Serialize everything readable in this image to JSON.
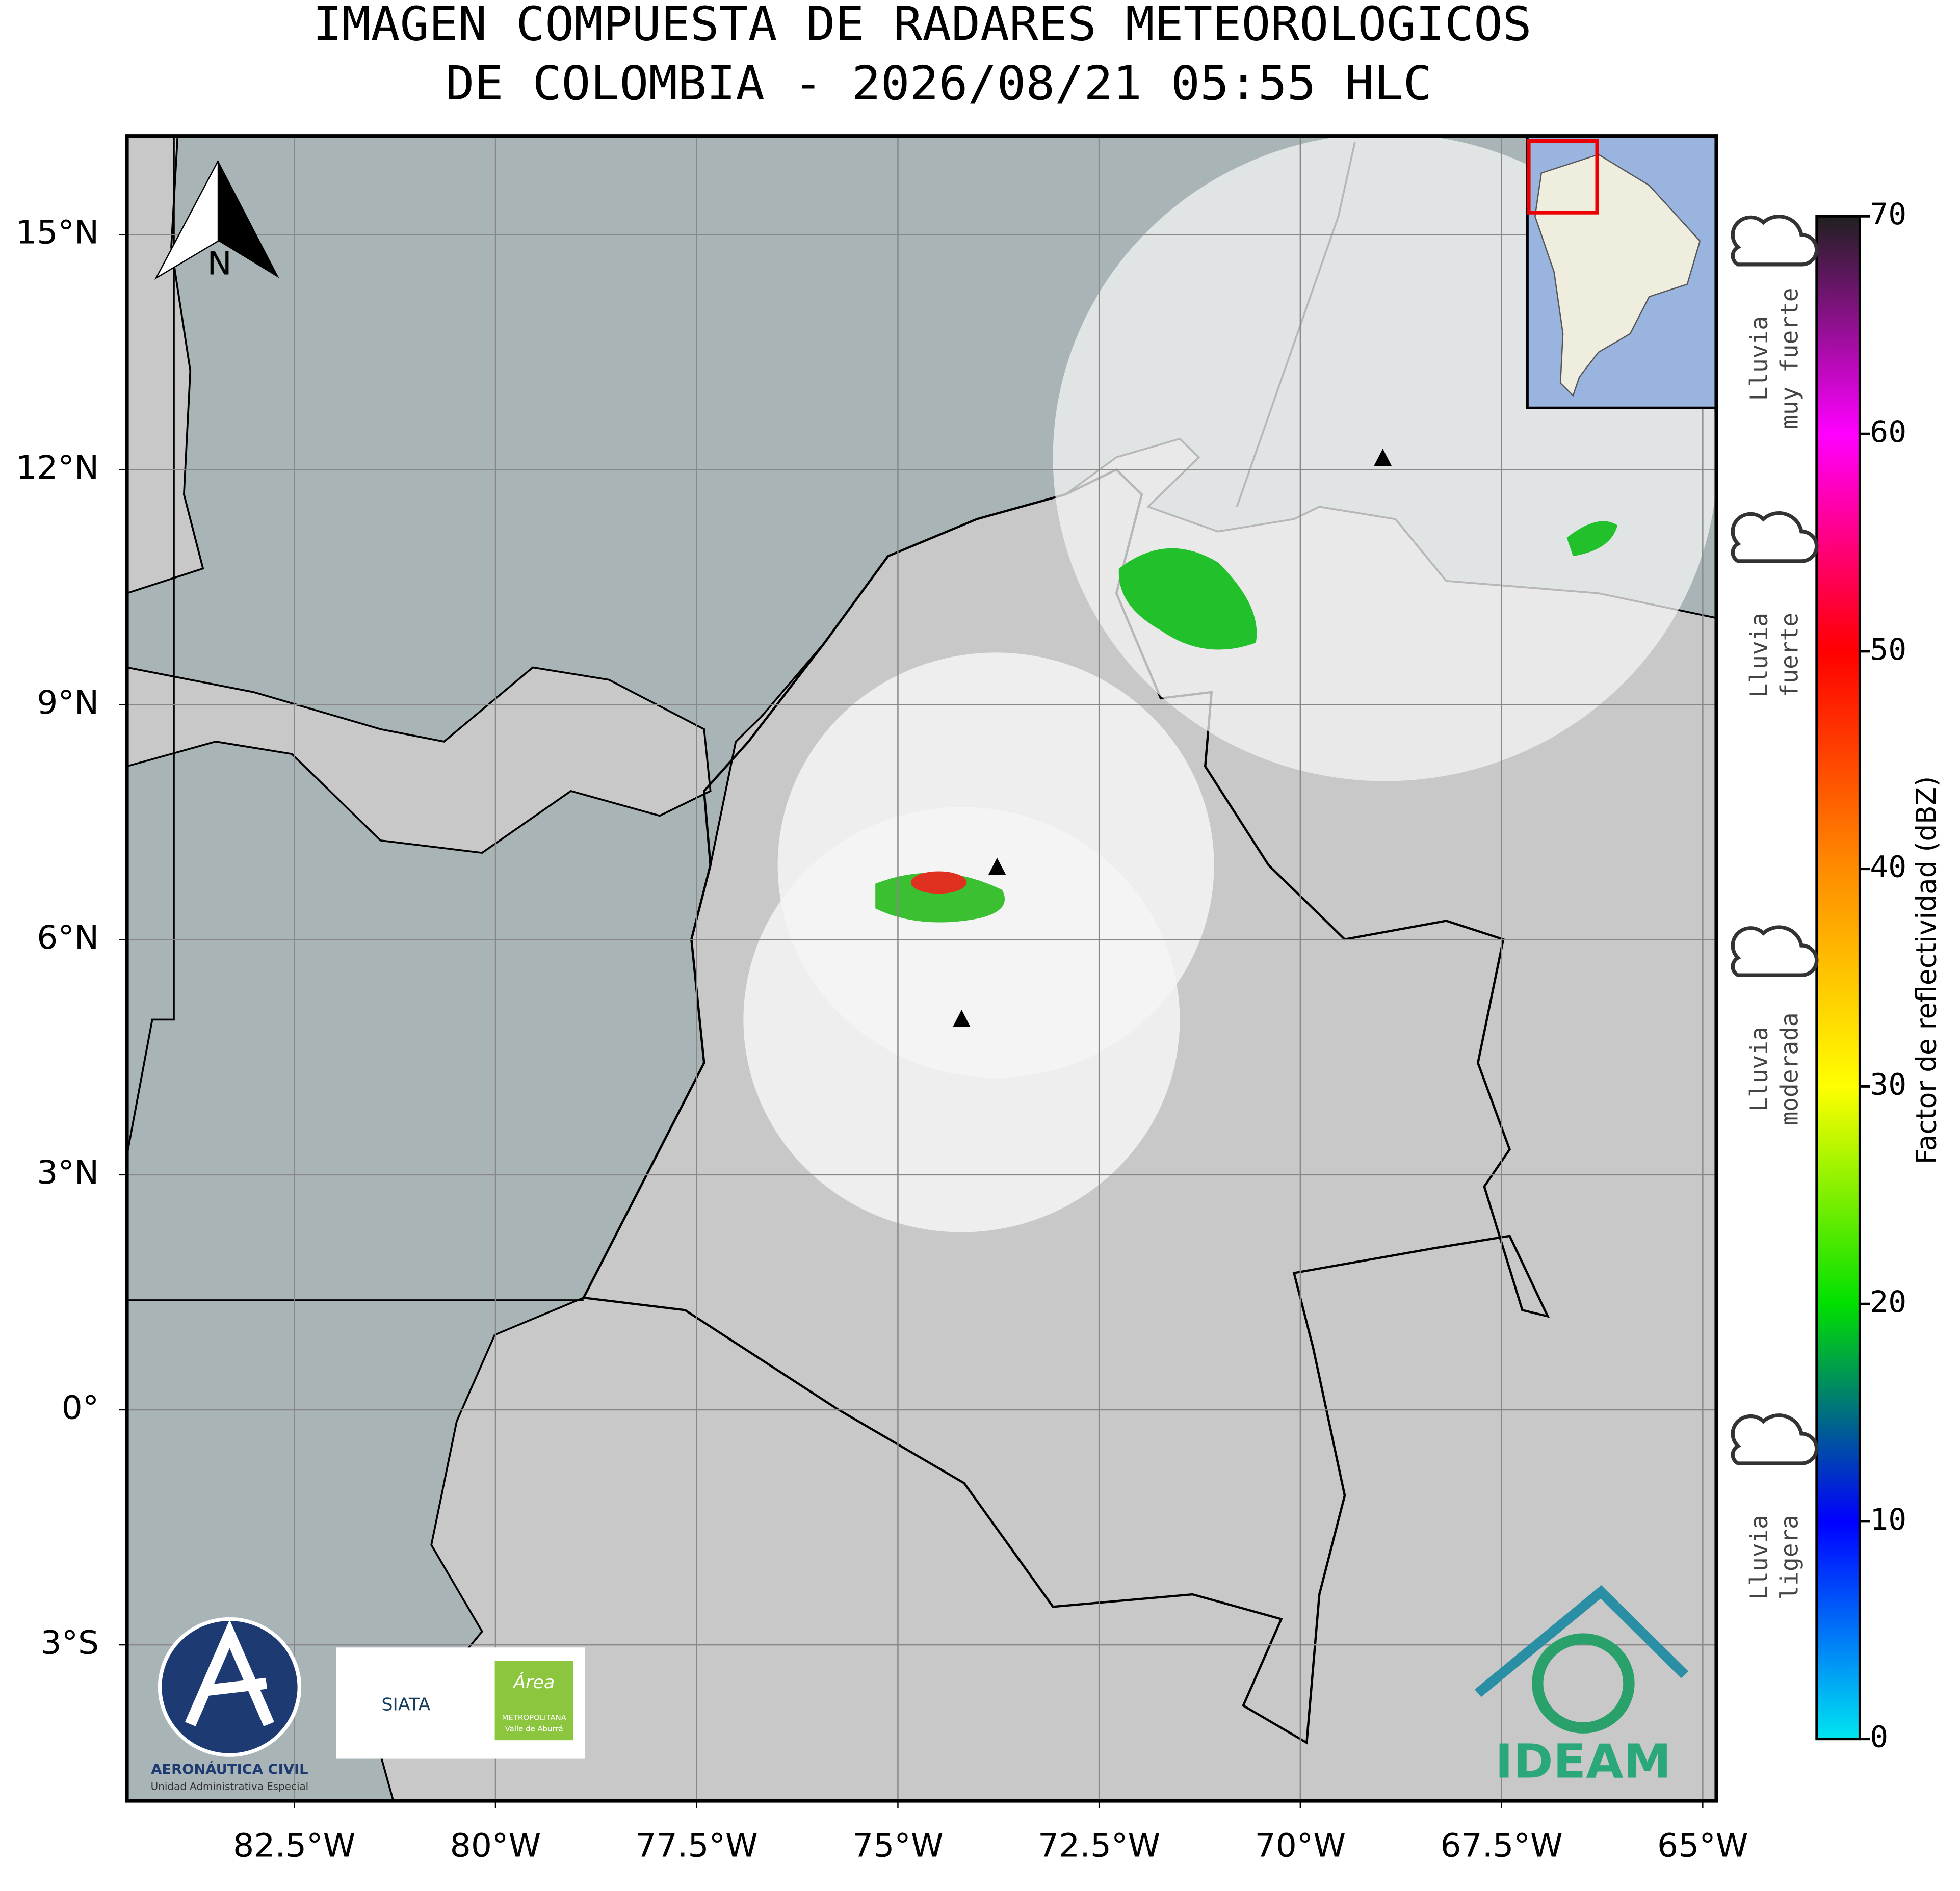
{
  "chart_data": {
    "type": "map",
    "title": [
      "IMAGEN COMPUESTA DE RADARES METEOROLOGICOS",
      "DE COLOMBIA - 2026/08/21 05:55 HLC"
    ],
    "xlim": [
      -84.58,
      -64.83
    ],
    "ylim": [
      -4.99,
      16.26
    ],
    "xticks": [
      {
        "value": -82.5,
        "label": "82.5°W"
      },
      {
        "value": -80,
        "label": "80°W"
      },
      {
        "value": -77.5,
        "label": "77.5°W"
      },
      {
        "value": -75,
        "label": "75°W"
      },
      {
        "value": -72.5,
        "label": "72.5°W"
      },
      {
        "value": -70,
        "label": "70°W"
      },
      {
        "value": -67.5,
        "label": "67.5°W"
      },
      {
        "value": -65,
        "label": "65°W"
      }
    ],
    "yticks": [
      {
        "value": 15,
        "label": "15°N"
      },
      {
        "value": 12,
        "label": "12°N"
      },
      {
        "value": 9,
        "label": "9°N"
      },
      {
        "value": 6,
        "label": "6°N"
      },
      {
        "value": 3,
        "label": "3°N"
      },
      {
        "value": 0,
        "label": "0°"
      },
      {
        "value": -3,
        "label": "3°S"
      }
    ],
    "grid": true,
    "colorbar": {
      "label": "Factor de reflectividad (dBZ)",
      "lim": [
        0,
        70
      ],
      "ticks": [
        0,
        10,
        20,
        30,
        40,
        50,
        60,
        70
      ],
      "colors": [
        "#00e5f0",
        "#0000ff",
        "#00e000",
        "#ffff00",
        "#ff8c00",
        "#ff0000",
        "#ff00ff",
        "#202020"
      ]
    },
    "rain_labels": [
      [
        "Lluvia",
        "muy fuerte"
      ],
      [
        "Lluvia",
        "fuerte"
      ],
      [
        "Lluvia",
        "moderada"
      ],
      [
        "Lluvia",
        "ligera"
      ]
    ],
    "north_label": "N",
    "logos": {
      "aerocivil": [
        "AERONÁUTICA CIVIL",
        "Unidad Administrativa Especial"
      ],
      "siata": "SIATA",
      "area": [
        "Área",
        "METROPOLITANA",
        "Valle de Aburrá"
      ],
      "ideam": "IDEAM"
    }
  }
}
